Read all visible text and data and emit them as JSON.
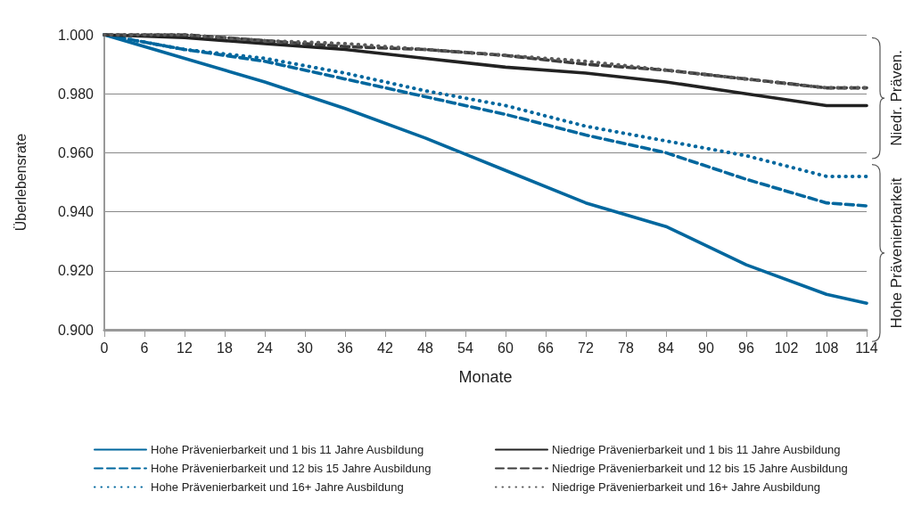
{
  "chart_data": {
    "type": "line",
    "xlabel": "Monate",
    "ylabel": "Überlebensrate",
    "x": [
      0,
      12,
      24,
      36,
      48,
      60,
      72,
      84,
      96,
      108,
      114
    ],
    "series": [
      {
        "name": "Hohe Prävenierbarkeit und 1 bis 11 Jahre Ausbildung",
        "color": "#00679e",
        "line_style": "solid",
        "values": [
          1.0,
          0.992,
          0.984,
          0.975,
          0.965,
          0.954,
          0.943,
          0.935,
          0.922,
          0.912,
          0.909
        ]
      },
      {
        "name": "Hohe Prävenierbarkeit und 12 bis 15 Jahre Ausbildung",
        "color": "#00679e",
        "line_style": "dashed",
        "values": [
          1.0,
          0.995,
          0.991,
          0.985,
          0.979,
          0.973,
          0.966,
          0.96,
          0.951,
          0.943,
          0.942
        ]
      },
      {
        "name": "Hohe Prävenierbarkeit und 16+ Jahre Ausbildung",
        "color": "#00679e",
        "line_style": "dotted",
        "values": [
          1.0,
          0.995,
          0.992,
          0.987,
          0.981,
          0.976,
          0.969,
          0.964,
          0.959,
          0.952,
          0.952
        ]
      },
      {
        "name": "Niedrige Prävenierbarkeit und 1 bis 11 Jahre Ausbildung",
        "color": "#222222",
        "line_style": "solid",
        "values": [
          1.0,
          0.999,
          0.997,
          0.995,
          0.992,
          0.989,
          0.987,
          0.984,
          0.98,
          0.976,
          0.976
        ]
      },
      {
        "name": "Niedrige Prävenierbarkeit und 12 bis 15 Jahre Ausbildung",
        "color": "#3c3c3c",
        "line_style": "dashed",
        "values": [
          1.0,
          1.0,
          0.998,
          0.996,
          0.995,
          0.993,
          0.99,
          0.988,
          0.985,
          0.982,
          0.982
        ]
      },
      {
        "name": "Niedrige Prävenierbarkeit und 16+ Jahre Ausbildung",
        "color": "#5a5a5a",
        "line_style": "dotted",
        "values": [
          1.0,
          1.0,
          0.998,
          0.997,
          0.995,
          0.993,
          0.991,
          0.988,
          0.985,
          0.982,
          0.982
        ]
      }
    ],
    "xlim": [
      0,
      114
    ],
    "xticks": [
      0,
      6,
      12,
      18,
      24,
      30,
      36,
      42,
      48,
      54,
      60,
      66,
      72,
      78,
      84,
      90,
      96,
      102,
      108,
      114
    ],
    "ylim": [
      0.9,
      1.0
    ],
    "yticks": [
      {
        "value": 0.9,
        "label": "0.900"
      },
      {
        "value": 0.92,
        "label": "0.920"
      },
      {
        "value": 0.94,
        "label": "0.940"
      },
      {
        "value": 0.96,
        "label": "0.960"
      },
      {
        "value": 0.98,
        "label": "0.980"
      },
      {
        "value": 1.0,
        "label": "1.000"
      }
    ],
    "grid": "y",
    "legend": "bottom",
    "marker": "none",
    "annotations": [
      "Niedr. Präven.",
      "Hohe Prävenierbarkeit"
    ]
  }
}
